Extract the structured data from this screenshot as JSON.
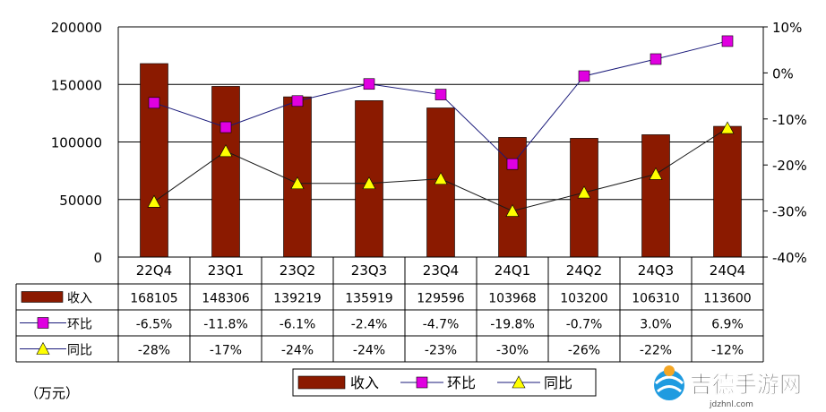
{
  "chart_data": {
    "type": "bar",
    "categories": [
      "22Q4",
      "23Q1",
      "23Q2",
      "23Q3",
      "23Q4",
      "24Q1",
      "24Q2",
      "24Q3",
      "24Q4"
    ],
    "series": [
      {
        "name": "收入",
        "type": "bar",
        "axis": "left",
        "color": "#8b1a00",
        "values": [
          168105,
          148306,
          139219,
          135919,
          129596,
          103968,
          103200,
          106310,
          113600
        ],
        "labels": [
          "168105",
          "148306",
          "139219",
          "135919",
          "129596",
          "103968",
          "103200",
          "106310",
          "113600"
        ]
      },
      {
        "name": "环比",
        "type": "line",
        "axis": "right",
        "color": "#e000e0",
        "marker": "square",
        "values": [
          -6.5,
          -11.8,
          -6.1,
          -2.4,
          -4.7,
          -19.8,
          -0.7,
          3.0,
          6.9
        ],
        "labels": [
          "-6.5%",
          "-11.8%",
          "-6.1%",
          "-2.4%",
          "-4.7%",
          "-19.8%",
          "-0.7%",
          "3.0%",
          "6.9%"
        ]
      },
      {
        "name": "同比",
        "type": "line",
        "axis": "right",
        "color": "#ffff00",
        "marker": "triangle",
        "values": [
          -28,
          -17,
          -24,
          -24,
          -23,
          -30,
          -26,
          -22,
          -12
        ],
        "labels": [
          "-28%",
          "-17%",
          "-24%",
          "-24%",
          "-23%",
          "-30%",
          "-26%",
          "-22%",
          "-12%"
        ]
      }
    ],
    "y_left": {
      "ylim": [
        0,
        200000
      ],
      "ticks": [
        "0",
        "50000",
        "100000",
        "150000",
        "200000"
      ]
    },
    "y_right": {
      "ylim": [
        -40,
        10
      ],
      "ticks": [
        "-40%",
        "-30%",
        "-20%",
        "-10%",
        "0%",
        "10%"
      ]
    },
    "unit_label": "（万元）",
    "grid": true,
    "legend": {
      "placement": "bottom-center",
      "items": [
        "收入",
        "环比",
        "同比"
      ]
    },
    "data_table": true
  },
  "watermark": {
    "text": "吉德手游网",
    "sub": "jdzhnl.com"
  }
}
